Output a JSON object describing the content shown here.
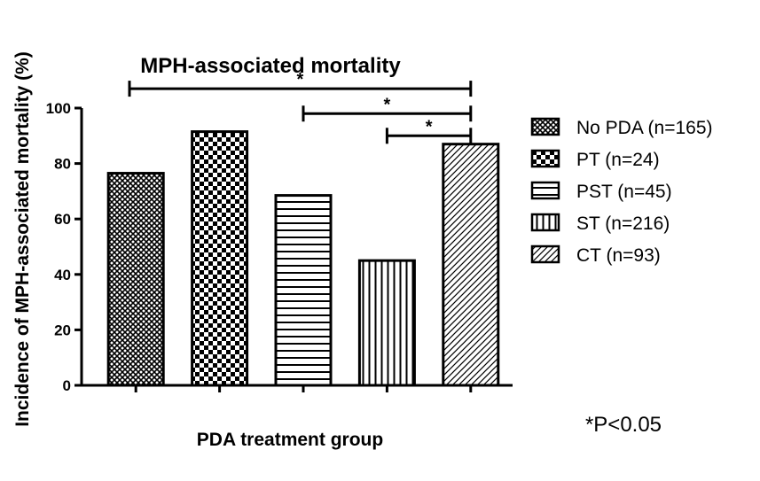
{
  "chart_data": {
    "type": "bar",
    "title": "MPH-associated mortality",
    "xlabel": "PDA treatment group",
    "ylabel": "Incidence of MPH-associated mortality (%)",
    "ylim": [
      0,
      100
    ],
    "yticks": [
      0,
      20,
      40,
      60,
      80,
      100
    ],
    "grid": false,
    "legend_position": "right",
    "categories": [
      "No PDA (n=165)",
      "PT (n=24)",
      "PST (n=45)",
      "ST (n=216)",
      "CT (n=93)"
    ],
    "values": [
      76.5,
      91.5,
      68.5,
      45,
      87
    ],
    "patterns": [
      "crosshatch",
      "checker",
      "horizontal-lines",
      "vertical-lines",
      "diagonal-lines"
    ],
    "significance": [
      {
        "from": 0,
        "to": 4,
        "label": "*"
      },
      {
        "from": 2,
        "to": 4,
        "label": "*"
      },
      {
        "from": 3,
        "to": 4,
        "label": "*"
      }
    ],
    "footnote": "*P<0.05"
  },
  "colors": {
    "ink": "#000000",
    "background": "#ffffff"
  }
}
